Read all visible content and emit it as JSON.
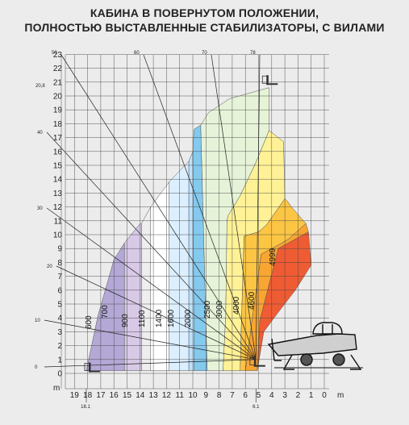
{
  "title_lines": [
    "КАБИНА В ПОВЕРНУТОМ ПОЛОЖЕНИИ,",
    "ПОЛНОСТЬЮ ВЫСТАВЛЕННЫЕ СТАБИЛИЗАТОРЫ, С ВИЛАМИ"
  ],
  "chart_data": {
    "type": "load_chart_diagram",
    "y_axis": {
      "unit": "m",
      "ticks": [
        0,
        1,
        2,
        3,
        4,
        5,
        6,
        7,
        8,
        9,
        10,
        11,
        12,
        13,
        14,
        15,
        16,
        17,
        18,
        19,
        20,
        21,
        22,
        23
      ],
      "max_height_label": "20,8"
    },
    "x_axis": {
      "unit": "m",
      "ticks": [
        19,
        18,
        17,
        16,
        15,
        14,
        13,
        12,
        11,
        10,
        9,
        8,
        7,
        6,
        5,
        4,
        3,
        2,
        1,
        0
      ],
      "outreach_labels": [
        "18.1",
        "6.1"
      ]
    },
    "boom_angles_deg": [
      0,
      10,
      20,
      30,
      40,
      50,
      60,
      70,
      78
    ],
    "load_zones_kg": [
      {
        "label": "600",
        "color": "#b3a8d6"
      },
      {
        "label": "700",
        "color": "#d8c9e6"
      },
      {
        "label": "900",
        "color": "#eeeeee"
      },
      {
        "label": "1100",
        "color": "#ffffff"
      },
      {
        "label": "1400",
        "color": "#dcefff"
      },
      {
        "label": "1600",
        "color": "#bfe2fa"
      },
      {
        "label": "2000",
        "color": "#84c9ee"
      },
      {
        "label": "2500",
        "color": "#e6f3d8"
      },
      {
        "label": "3000",
        "color": "#fff296"
      },
      {
        "label": "4000",
        "color": "#fcc544"
      },
      {
        "label": "4600",
        "color": "#f8a532"
      },
      {
        "label": "4999",
        "color": "#ef5c34"
      }
    ]
  }
}
